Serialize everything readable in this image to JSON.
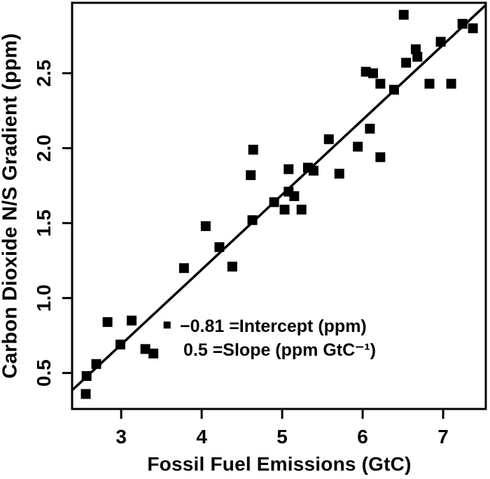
{
  "chart_data": {
    "type": "scatter",
    "title": "",
    "xlabel": "Fossil Fuel Emissions (GtC)",
    "ylabel": "Carbon Dioxide N/S Gradient (ppm)",
    "xlim": [
      2.39,
      7.53
    ],
    "ylim": [
      0.26,
      2.97
    ],
    "xticks": [
      3,
      4,
      5,
      6,
      7
    ],
    "yticks": [
      0.5,
      1.0,
      1.5,
      2.0,
      2.5
    ],
    "grid": false,
    "marker": "filled-square",
    "colors": {
      "foreground": "#000000",
      "background": "#ffffff"
    },
    "points": [
      [
        6.51,
        2.89
      ],
      [
        7.24,
        2.83
      ],
      [
        7.37,
        2.8
      ],
      [
        6.97,
        2.71
      ],
      [
        6.66,
        2.66
      ],
      [
        6.68,
        2.61
      ],
      [
        6.54,
        2.57
      ],
      [
        6.04,
        2.51
      ],
      [
        6.13,
        2.5
      ],
      [
        6.22,
        2.43
      ],
      [
        6.39,
        2.39
      ],
      [
        6.83,
        2.43
      ],
      [
        7.1,
        2.43
      ],
      [
        6.09,
        2.13
      ],
      [
        5.58,
        2.06
      ],
      [
        5.94,
        2.01
      ],
      [
        6.22,
        1.94
      ],
      [
        4.64,
        1.99
      ],
      [
        4.61,
        1.82
      ],
      [
        5.08,
        1.86
      ],
      [
        5.32,
        1.87
      ],
      [
        5.39,
        1.85
      ],
      [
        5.71,
        1.83
      ],
      [
        5.08,
        1.71
      ],
      [
        5.15,
        1.68
      ],
      [
        4.9,
        1.64
      ],
      [
        5.03,
        1.59
      ],
      [
        5.24,
        1.59
      ],
      [
        4.63,
        1.52
      ],
      [
        4.05,
        1.48
      ],
      [
        4.22,
        1.34
      ],
      [
        3.78,
        1.2
      ],
      [
        4.38,
        1.21
      ],
      [
        2.83,
        0.84
      ],
      [
        3.13,
        0.85
      ],
      [
        2.99,
        0.69
      ],
      [
        3.3,
        0.66
      ],
      [
        3.4,
        0.63
      ],
      [
        2.69,
        0.56
      ],
      [
        2.57,
        0.48
      ],
      [
        2.56,
        0.36
      ]
    ],
    "fit_line": {
      "slope": 0.5,
      "intercept": -0.81
    },
    "annotation": {
      "marker_x": 3.57,
      "marker_y": 0.82,
      "line1": "−0.81 =Intercept (ppm)",
      "line2": "0.5 =Slope (ppm GtC⁻¹)"
    }
  }
}
